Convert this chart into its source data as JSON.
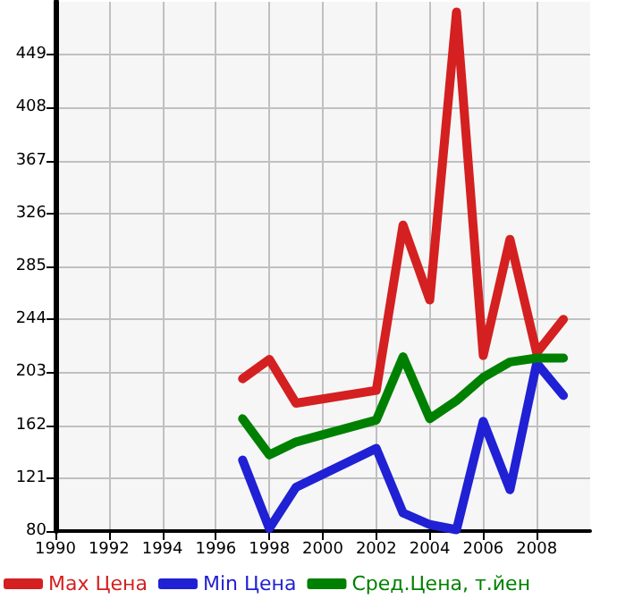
{
  "chart_data": {
    "type": "line",
    "x": [
      1997,
      1998,
      1999,
      2002,
      2003,
      2004,
      2005,
      2006,
      2007,
      2008,
      2009
    ],
    "series": [
      {
        "name": "Max Цена",
        "color": "#d42020",
        "values": [
          198,
          213,
          179,
          189,
          317,
          259,
          482,
          216,
          306,
          218,
          244
        ]
      },
      {
        "name": "Min Цена",
        "color": "#2020d4",
        "values": [
          135,
          82,
          114,
          144,
          94,
          85,
          81,
          165,
          112,
          210,
          185
        ]
      },
      {
        "name": "Сред.Цена, т.йен",
        "color": "#008000",
        "values": [
          167,
          139,
          149,
          166,
          215,
          167,
          181,
          199,
          211,
          214,
          214
        ]
      }
    ],
    "xlim": [
      1990,
      2010
    ],
    "xticks": [
      1990,
      1992,
      1994,
      1996,
      1998,
      2000,
      2002,
      2004,
      2006,
      2008
    ],
    "ylim": [
      80,
      490
    ],
    "yticks": [
      80,
      121,
      162,
      203,
      244,
      285,
      326,
      367,
      408,
      449
    ],
    "grid": true,
    "legend": "bottom",
    "marker": "none",
    "line_style": "solid"
  }
}
